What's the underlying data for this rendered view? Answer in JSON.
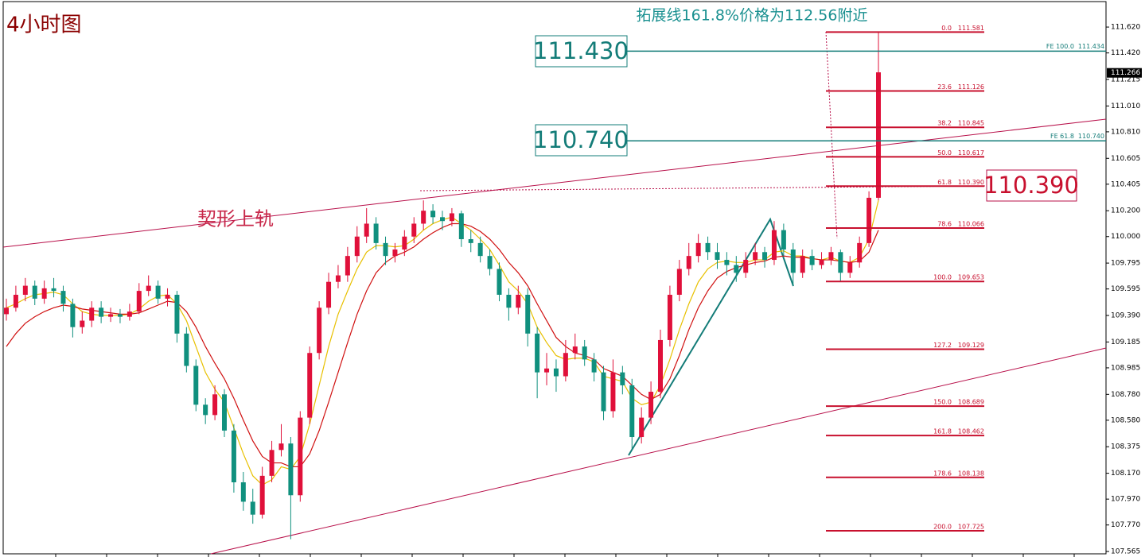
{
  "chart_data": {
    "type": "candlestick",
    "title": "4小时图",
    "annotation": "拓展线161.8%价格为112.56附近",
    "wedge_label": "契形上轨",
    "box_labels": [
      "111.430",
      "110.740",
      "110.390"
    ],
    "up_color": "#e0103a",
    "down_color": "#10907e",
    "ylim": [
      107.547,
      111.817
    ],
    "yticks": [
      {
        "value": 111.62,
        "label": "111.620"
      },
      {
        "value": 111.42,
        "label": "111.420"
      },
      111.215,
      {
        "value": 111.01,
        "label": "111.010"
      },
      {
        "value": 110.81,
        "label": "110.810"
      },
      110.605,
      110.405,
      {
        "value": 110.2,
        "label": "110.200"
      },
      {
        "value": 110,
        "label": "110.000"
      },
      109.795,
      109.595,
      {
        "value": 109.39,
        "label": "109.390"
      },
      109.185,
      108.985,
      {
        "value": 108.78,
        "label": "108.780"
      },
      {
        "value": 108.58,
        "label": "108.580"
      },
      108.375,
      {
        "value": 108.17,
        "label": "108.170"
      },
      {
        "value": 107.97,
        "label": "107.970"
      },
      {
        "value": 107.77,
        "label": "107.770"
      },
      107.565
    ],
    "current_price": 111.266,
    "candles": [
      [
        109.4,
        109.52,
        109.35,
        109.45
      ],
      [
        109.45,
        109.62,
        109.42,
        109.55
      ],
      [
        109.55,
        109.68,
        109.5,
        109.62
      ],
      [
        109.62,
        109.66,
        109.47,
        109.52
      ],
      [
        109.52,
        109.66,
        109.48,
        109.6
      ],
      [
        109.6,
        109.68,
        109.53,
        109.58
      ],
      [
        109.58,
        109.62,
        109.42,
        109.48
      ],
      [
        109.48,
        109.52,
        109.22,
        109.3
      ],
      [
        109.3,
        109.42,
        109.25,
        109.35
      ],
      [
        109.35,
        109.5,
        109.3,
        109.45
      ],
      [
        109.45,
        109.5,
        109.33,
        109.38
      ],
      [
        109.38,
        109.45,
        109.34,
        109.4
      ],
      [
        109.4,
        109.44,
        109.33,
        109.38
      ],
      [
        109.38,
        109.48,
        109.35,
        109.42
      ],
      [
        109.42,
        109.64,
        109.4,
        109.58
      ],
      [
        109.58,
        109.7,
        109.54,
        109.62
      ],
      [
        109.62,
        109.66,
        109.48,
        109.52
      ],
      [
        109.52,
        109.6,
        109.46,
        109.55
      ],
      [
        109.55,
        109.58,
        109.18,
        109.25
      ],
      [
        109.25,
        109.3,
        108.95,
        109.0
      ],
      [
        109.0,
        109.05,
        108.65,
        108.7
      ],
      [
        108.7,
        108.75,
        108.55,
        108.62
      ],
      [
        108.62,
        108.85,
        108.58,
        108.78
      ],
      [
        108.78,
        108.82,
        108.45,
        108.5
      ],
      [
        108.5,
        108.55,
        108.02,
        108.1
      ],
      [
        108.1,
        108.18,
        107.88,
        107.95
      ],
      [
        107.95,
        108.05,
        107.78,
        107.85
      ],
      [
        107.85,
        108.22,
        107.82,
        108.15
      ],
      [
        108.15,
        108.42,
        108.1,
        108.35
      ],
      [
        108.35,
        108.55,
        108.3,
        108.4
      ],
      [
        108.4,
        108.45,
        107.66,
        108.0
      ],
      [
        108.0,
        108.65,
        107.95,
        108.6
      ],
      [
        108.6,
        109.15,
        108.55,
        109.1
      ],
      [
        109.1,
        109.5,
        109.05,
        109.45
      ],
      [
        109.45,
        109.72,
        109.4,
        109.65
      ],
      [
        109.65,
        109.78,
        109.6,
        109.7
      ],
      [
        109.7,
        109.92,
        109.65,
        109.85
      ],
      [
        109.85,
        110.08,
        109.8,
        110.0
      ],
      [
        110.0,
        110.22,
        109.95,
        110.1
      ],
      [
        110.1,
        110.15,
        109.9,
        109.95
      ],
      [
        109.95,
        110.0,
        109.78,
        109.85
      ],
      [
        109.85,
        109.95,
        109.8,
        109.9
      ],
      [
        109.9,
        110.05,
        109.85,
        110.0
      ],
      [
        110.0,
        110.15,
        109.95,
        110.1
      ],
      [
        110.1,
        110.28,
        110.05,
        110.2
      ],
      [
        110.2,
        110.25,
        110.1,
        110.15
      ],
      [
        110.15,
        110.2,
        110.05,
        110.12
      ],
      [
        110.12,
        110.22,
        110.08,
        110.18
      ],
      [
        110.18,
        110.2,
        109.92,
        109.98
      ],
      [
        109.98,
        110.05,
        109.88,
        109.95
      ],
      [
        109.95,
        110.0,
        109.8,
        109.85
      ],
      [
        109.85,
        109.9,
        109.7,
        109.75
      ],
      [
        109.75,
        109.8,
        109.5,
        109.55
      ],
      [
        109.55,
        109.6,
        109.35,
        109.45
      ],
      [
        109.45,
        109.62,
        109.4,
        109.55
      ],
      [
        109.55,
        109.6,
        109.15,
        109.25
      ],
      [
        109.25,
        109.3,
        108.75,
        108.95
      ],
      [
        108.95,
        109.1,
        108.85,
        108.98
      ],
      [
        108.98,
        109.05,
        108.8,
        108.92
      ],
      [
        108.92,
        109.2,
        108.88,
        109.1
      ],
      [
        109.1,
        109.25,
        109.05,
        109.15
      ],
      [
        109.15,
        109.2,
        109.0,
        109.05
      ],
      [
        109.05,
        109.1,
        108.88,
        108.95
      ],
      [
        108.95,
        109.0,
        108.58,
        108.65
      ],
      [
        108.65,
        109.05,
        108.6,
        108.95
      ],
      [
        108.95,
        109.0,
        108.78,
        108.85
      ],
      [
        108.85,
        108.9,
        108.35,
        108.45
      ],
      [
        108.45,
        108.68,
        108.4,
        108.6
      ],
      [
        108.6,
        108.88,
        108.55,
        108.8
      ],
      [
        108.8,
        109.28,
        108.75,
        109.2
      ],
      [
        109.2,
        109.62,
        109.15,
        109.55
      ],
      [
        109.55,
        109.82,
        109.5,
        109.75
      ],
      [
        109.75,
        109.95,
        109.7,
        109.85
      ],
      [
        109.85,
        110.02,
        109.8,
        109.95
      ],
      [
        109.95,
        110.0,
        109.82,
        109.88
      ],
      [
        109.88,
        109.95,
        109.75,
        109.82
      ],
      [
        109.82,
        109.88,
        109.7,
        109.78
      ],
      [
        109.78,
        109.85,
        109.65,
        109.72
      ],
      [
        109.72,
        109.88,
        109.68,
        109.82
      ],
      [
        109.82,
        109.95,
        109.78,
        109.88
      ],
      [
        109.88,
        109.92,
        109.76,
        109.82
      ],
      [
        109.82,
        110.12,
        109.78,
        110.05
      ],
      [
        110.05,
        110.1,
        109.85,
        109.9
      ],
      [
        109.9,
        109.95,
        109.62,
        109.72
      ],
      [
        109.72,
        109.9,
        109.68,
        109.85
      ],
      [
        109.85,
        109.9,
        109.74,
        109.78
      ],
      [
        109.78,
        109.88,
        109.75,
        109.82
      ],
      [
        109.82,
        109.92,
        109.78,
        109.88
      ],
      [
        109.88,
        109.9,
        109.65,
        109.72
      ],
      [
        109.72,
        109.85,
        109.68,
        109.8
      ],
      [
        109.8,
        110.0,
        109.76,
        109.95
      ],
      [
        109.95,
        110.35,
        109.92,
        110.3
      ],
      [
        110.3,
        111.58,
        110.28,
        111.27
      ]
    ],
    "moving_averages": [
      {
        "color": "#e8c000",
        "values": [
          109.45,
          109.48,
          109.52,
          109.55,
          109.56,
          109.57,
          109.55,
          109.48,
          109.42,
          109.4,
          109.39,
          109.39,
          109.39,
          109.4,
          109.44,
          109.5,
          109.54,
          109.55,
          109.48,
          109.35,
          109.15,
          108.95,
          108.82,
          108.72,
          108.52,
          108.32,
          108.15,
          108.08,
          108.12,
          108.22,
          108.2,
          108.3,
          108.55,
          108.85,
          109.15,
          109.4,
          109.58,
          109.75,
          109.88,
          109.93,
          109.93,
          109.92,
          109.93,
          109.98,
          110.05,
          110.1,
          110.13,
          110.15,
          110.1,
          110.05,
          109.98,
          109.9,
          109.78,
          109.65,
          109.58,
          109.48,
          109.3,
          109.18,
          109.08,
          109.05,
          109.06,
          109.06,
          109.03,
          108.92,
          108.9,
          108.88,
          108.75,
          108.7,
          108.72,
          108.85,
          109.05,
          109.28,
          109.48,
          109.65,
          109.75,
          109.8,
          109.81,
          109.8,
          109.8,
          109.82,
          109.82,
          109.88,
          109.89,
          109.85,
          109.85,
          109.83,
          109.82,
          109.84,
          109.81,
          109.8,
          109.84,
          109.98,
          110.28
        ]
      },
      {
        "color": "#d01010",
        "values": [
          109.15,
          109.25,
          109.33,
          109.38,
          109.42,
          109.45,
          109.47,
          109.46,
          109.44,
          109.43,
          109.42,
          109.41,
          109.4,
          109.4,
          109.41,
          109.44,
          109.47,
          109.5,
          109.49,
          109.42,
          109.3,
          109.15,
          109.02,
          108.9,
          108.75,
          108.58,
          108.42,
          108.3,
          108.25,
          108.25,
          108.22,
          108.22,
          108.32,
          108.5,
          108.72,
          108.95,
          109.18,
          109.4,
          109.58,
          109.72,
          109.8,
          109.85,
          109.88,
          109.92,
          109.98,
          110.03,
          110.07,
          110.1,
          110.1,
          110.08,
          110.04,
          109.98,
          109.9,
          109.8,
          109.72,
          109.62,
          109.48,
          109.35,
          109.22,
          109.15,
          109.1,
          109.08,
          109.05,
          108.98,
          108.95,
          108.92,
          108.85,
          108.78,
          108.74,
          108.78,
          108.9,
          109.08,
          109.28,
          109.45,
          109.58,
          109.68,
          109.73,
          109.76,
          109.78,
          109.8,
          109.81,
          109.84,
          109.85,
          109.84,
          109.84,
          109.83,
          109.82,
          109.82,
          109.81,
          109.8,
          109.81,
          109.88,
          110.05
        ]
      }
    ],
    "fib_color": "#c8102e",
    "fib_levels": [
      {
        "ratio": {
          "value": 0,
          "label": "0.0"
        },
        "price": 111.581
      },
      {
        "ratio": 23.6,
        "price": 111.126
      },
      {
        "ratio": 38.2,
        "price": 110.845
      },
      {
        "ratio": {
          "value": 50,
          "label": "50.0"
        },
        "price": 110.617
      },
      {
        "ratio": 61.8,
        "price": {
          "value": 110.39,
          "label": "110.390"
        }
      },
      {
        "ratio": 78.6,
        "price": 110.066
      },
      {
        "ratio": {
          "value": 100,
          "label": "100.0"
        },
        "price": 109.653
      },
      {
        "ratio": 127.2,
        "price": 109.129
      },
      {
        "ratio": {
          "value": 150,
          "label": "150.0"
        },
        "price": 108.689
      },
      {
        "ratio": 161.8,
        "price": 108.462
      },
      {
        "ratio": 178.6,
        "price": 108.138
      },
      {
        "ratio": {
          "value": 200,
          "label": "200.0"
        },
        "price": 107.725
      }
    ],
    "fe_color": "#137c78",
    "fe_levels": [
      {
        "name": "FE 100.0",
        "price": 111.434
      },
      {
        "name": "FE 61.8",
        "price": {
          "value": 110.74,
          "label": "110.740"
        }
      }
    ]
  }
}
